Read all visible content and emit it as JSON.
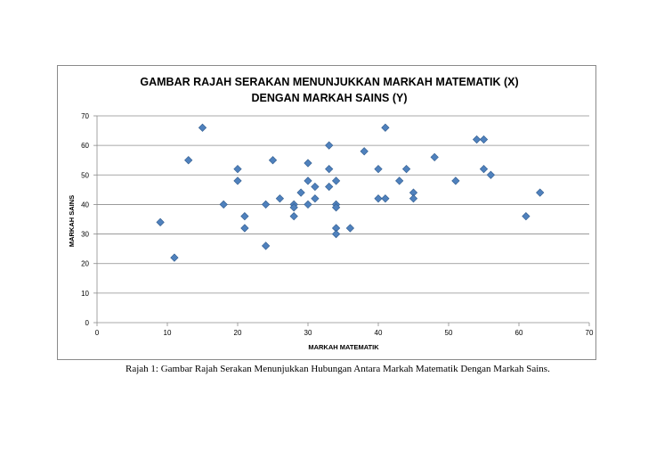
{
  "chart_data": {
    "type": "scatter",
    "title_lines": [
      "GAMBAR RAJAH SERAKAN MENUNJUKKAN MARKAH MATEMATIK (X)",
      "DENGAN MARKAH SAINS (Y)"
    ],
    "xlabel": "MARKAH  MATEMATIK",
    "ylabel": "MARKAH SAINS",
    "xlim": [
      0,
      70
    ],
    "ylim": [
      0,
      70
    ],
    "xticks": [
      0,
      10,
      20,
      30,
      40,
      50,
      60,
      70
    ],
    "yticks": [
      0,
      10,
      20,
      30,
      40,
      50,
      60,
      70
    ],
    "grid": "horizontal",
    "legend": "none",
    "marker": "diamond",
    "marker_color": "#4f81bd",
    "points": [
      {
        "x": 9,
        "y": 34
      },
      {
        "x": 11,
        "y": 22
      },
      {
        "x": 13,
        "y": 55
      },
      {
        "x": 15,
        "y": 66
      },
      {
        "x": 18,
        "y": 40
      },
      {
        "x": 20,
        "y": 52
      },
      {
        "x": 20,
        "y": 48
      },
      {
        "x": 21,
        "y": 36
      },
      {
        "x": 21,
        "y": 32
      },
      {
        "x": 24,
        "y": 40
      },
      {
        "x": 24,
        "y": 26
      },
      {
        "x": 25,
        "y": 55
      },
      {
        "x": 26,
        "y": 42
      },
      {
        "x": 28,
        "y": 40
      },
      {
        "x": 28,
        "y": 39
      },
      {
        "x": 28,
        "y": 36
      },
      {
        "x": 29,
        "y": 44
      },
      {
        "x": 30,
        "y": 54
      },
      {
        "x": 30,
        "y": 48
      },
      {
        "x": 30,
        "y": 40
      },
      {
        "x": 31,
        "y": 46
      },
      {
        "x": 31,
        "y": 42
      },
      {
        "x": 33,
        "y": 60
      },
      {
        "x": 33,
        "y": 52
      },
      {
        "x": 33,
        "y": 46
      },
      {
        "x": 34,
        "y": 48
      },
      {
        "x": 34,
        "y": 40
      },
      {
        "x": 34,
        "y": 39
      },
      {
        "x": 34,
        "y": 32
      },
      {
        "x": 34,
        "y": 30
      },
      {
        "x": 36,
        "y": 32
      },
      {
        "x": 38,
        "y": 58
      },
      {
        "x": 40,
        "y": 52
      },
      {
        "x": 40,
        "y": 42
      },
      {
        "x": 41,
        "y": 66
      },
      {
        "x": 41,
        "y": 42
      },
      {
        "x": 43,
        "y": 48
      },
      {
        "x": 44,
        "y": 52
      },
      {
        "x": 45,
        "y": 44
      },
      {
        "x": 45,
        "y": 42
      },
      {
        "x": 48,
        "y": 56
      },
      {
        "x": 51,
        "y": 48
      },
      {
        "x": 54,
        "y": 62
      },
      {
        "x": 55,
        "y": 62
      },
      {
        "x": 55,
        "y": 52
      },
      {
        "x": 56,
        "y": 50
      },
      {
        "x": 61,
        "y": 36
      },
      {
        "x": 63,
        "y": 44
      }
    ]
  },
  "caption": "Rajah 1: Gambar Rajah Serakan Menunjukkan Hubungan Antara Markah Matematik Dengan Markah Sains."
}
